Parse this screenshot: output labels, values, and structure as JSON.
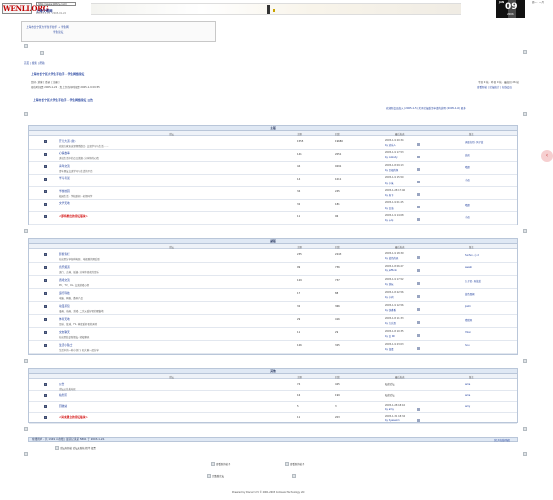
{
  "header": {
    "logo_text": "WENLI.ORG",
    "url": "http://www.jbttzy.com/",
    "site_name": "上海文明网",
    "site_date": "2003-11-01 · 2005-01-22"
  },
  "calendar": {
    "month": "JAN",
    "day": "09",
    "year": "2006",
    "side": "周一 · 一月"
  },
  "breadcrumb": {
    "line1": "上海市长宁区大学生手拉手 → 学生网",
    "line2": "学生论坛"
  },
  "nav": {
    "links": "首页 | 搜索 | 帮助"
  },
  "forum": {
    "title": "上海市长宁区大学生手拉手 · 学生网络论坛",
    "info1": "您好, 游客 [ 登录 | 注册 ]",
    "info2": "现在时间是 2005-1-22 · 您上次访问时间是 2005-1-9 09:55",
    "stats1": "今日 0 帖 · 昨日 0 帖 · 最高日 26 帖",
    "stats2": "查看新帖 | 论坛统计 | 在线会员",
    "welcome": "上海市长宁区大学生手拉手 · 学生网络论坛 公告",
    "links": "欢迎新会员加入 (2005-1-5)   关于论坛版主申请的说明 (2005-1-6)   更多"
  },
  "columns": {
    "forum": "论坛",
    "topics": "主题",
    "posts": "回复",
    "last": "最后发表",
    "mods": "版主"
  },
  "sections": [
    {
      "title": "主版",
      "rows": [
        {
          "name": "开元大道 (新)",
          "desc": "欢迎大家来这里畅所欲言, 交流学习与生活……",
          "topics": "1555",
          "posts": "19680",
          "last1": "2005-1-9 20:34",
          "last2": "by 欢乐人",
          "mods": "天使在烈, 风子蓝"
        },
        {
          "name": "心情故事",
          "desc": "诉说生活中的点点滴滴, 分享你的心情",
          "topics": "141",
          "posts": "2051",
          "last1": "2005-1-9 17:53",
          "last2": "by nobody",
          "mods": "高岚"
        },
        {
          "name": "青年交流",
          "desc": "青年朋友交流学习与生活的平台",
          "topics": "44",
          "posts": "9291",
          "last1": "2005-1-8 09:13",
          "last2": "by 幸福的鱼",
          "mods": "晴朗"
        },
        {
          "name": "学习考试",
          "desc": "",
          "topics": "14",
          "posts": "1011",
          "last1": "2005-1-9 15:50",
          "last2": "by 小朱",
          "mods": "小苗"
        },
        {
          "name": "学校校园",
          "desc": "校园生活 · 学校新闻 · 老师同学",
          "topics": "34",
          "posts": "245",
          "last1": "2005-1-28 17:46",
          "last2": "by 天下",
          "mods": ""
        },
        {
          "name": "文学天地",
          "desc": "",
          "topics": "32",
          "posts": "181",
          "last1": "2005-1-9 01:25",
          "last2": "by 沿海",
          "mods": "晴朗"
        },
        {
          "name": "<即将推出的论坛版块>",
          "desc": "",
          "red": true,
          "topics": "11",
          "posts": "96",
          "last1": "2005-1-9 14:08",
          "last2": "by 十年",
          "mods": "小苗"
        }
      ]
    },
    {
      "title": "副版",
      "rows": [
        {
          "name": "影视专栏",
          "desc": "在这里分享各种电影、电视剧的观后感",
          "topics": "235",
          "posts": "2243",
          "last1": "2005-1-9 18:39",
          "last2": "by 蓝色的天",
          "mods": "funfun, 小 2"
        },
        {
          "name": "音乐频道",
          "desc": "流行、古典、摇滚, 分享你喜欢的音乐",
          "topics": "99",
          "posts": "736",
          "last1": "2005-1-8 06:27",
          "last2": "by jeffunk",
          "mods": "awaki"
        },
        {
          "name": "游戏交流",
          "desc": "PC、TV、OL, 交流游戏心得",
          "topics": "129",
          "posts": "737",
          "last1": "2005-1-9 17:52",
          "last2": "by 游玩",
          "mods": "九子尼, 天蓝蓝"
        },
        {
          "name": "运行科技",
          "desc": "电脑、网络、数码产品",
          "topics": "17",
          "posts": "88",
          "last1": "2005-1-8 22:56",
          "last2": "by 小鸡",
          "mods": "蓝色雪枫"
        },
        {
          "name": "动漫茶馆",
          "desc": "漫画、动画、游戏, 二次元爱好者的聚集地",
          "topics": "32",
          "posts": "366",
          "last1": "2005-1-9 12:56",
          "last2": "by 快香香",
          "mods": "jiami"
        },
        {
          "name": "体育天地",
          "desc": "足球、篮球、F1, 体育爱好者的天地",
          "topics": "29",
          "posts": "416",
          "last1": "2005-1-8 11:33",
          "last2": "by 大兵哥",
          "mods": "猎猎风"
        },
        {
          "name": "交友聊天",
          "desc": "在这里结识新朋友, 轻松聊天",
          "topics": "11",
          "posts": "29",
          "last1": "2005-1-8 10:35",
          "last2": "by 沿 Wi",
          "mods": "Yikai"
        },
        {
          "name": "生活小贴士",
          "desc": "生活中的一些小窍门, 和大家一起分享",
          "topics": "126",
          "posts": "325",
          "last1": "2005-1-9 23:03",
          "last2": "by 温柔",
          "mods": "hou"
        }
      ]
    },
    {
      "title": "其他",
      "rows": [
        {
          "name": "公告",
          "desc": "论坛公告发布区",
          "topics": "74",
          "posts": "425",
          "last1": "私密论坛",
          "last2": "",
          "mods": "ame"
        },
        {
          "name": "站务区",
          "desc": "",
          "topics": "16",
          "posts": "199",
          "last1": "私密论坛",
          "last2": "",
          "mods": "ame"
        },
        {
          "name": "回收站",
          "desc": "",
          "topics": "5",
          "posts": "3",
          "last1": "2005-1-28 18:16",
          "last2": "by amy",
          "mods": "amy"
        },
        {
          "name": "<尚未建立的论坛板块>",
          "desc": "",
          "red": true,
          "topics": "11",
          "posts": "203",
          "last1": "2005-1-31 18:34",
          "last2": "by hyeseom",
          "mods": ""
        }
      ]
    }
  ],
  "online": {
    "text": "在线用户 - 共 1349 人在线 | 最高记录是 5861 于 2003-1-22.",
    "right": "[打开在线列表]"
  },
  "legend": {
    "items": "论坛有新帖    论坛无新帖    精华    投票"
  },
  "search": {
    "item1": "查看新的帖子",
    "item2": "查看新的帖子",
    "item3": "完整版论坛"
  },
  "footer": {
    "text": "Powered by Discuz! 2.5 © 2001-2003 Comsenz Technology Ltd"
  }
}
